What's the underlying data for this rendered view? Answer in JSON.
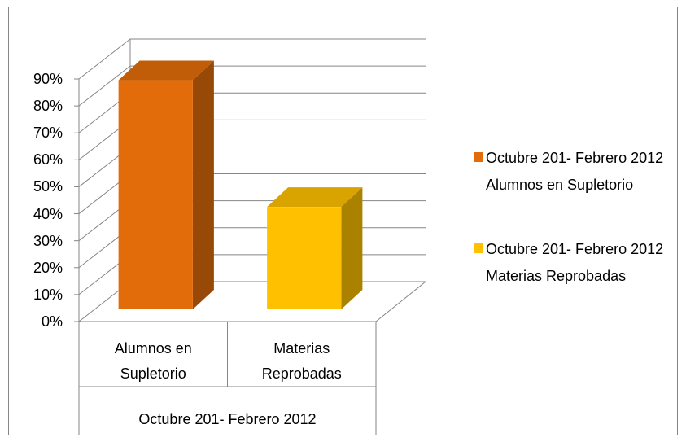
{
  "chart_data": {
    "type": "bar3d",
    "categories": [
      "Alumnos en Supletorio",
      "Materias Reprobadas"
    ],
    "category_group": "Octubre 201- Febrero 2012",
    "series": [
      {
        "name": "Octubre 201- Febrero 2012  Alumnos en Supletorio",
        "color": "#E36C0A",
        "values": [
          85,
          null
        ]
      },
      {
        "name": "Octubre 201- Febrero 2012  Materias Reprobadas",
        "color": "#FFC000",
        "values": [
          null,
          38
        ]
      }
    ],
    "ylim": [
      0,
      90
    ],
    "yticks": [
      {
        "value": 0,
        "label": "0%"
      },
      {
        "value": 10,
        "label": "10%"
      },
      {
        "value": 20,
        "label": "20%"
      },
      {
        "value": 30,
        "label": "30%"
      },
      {
        "value": 40,
        "label": "40%"
      },
      {
        "value": 50,
        "label": "50%"
      },
      {
        "value": 60,
        "label": "60%"
      },
      {
        "value": 70,
        "label": "70%"
      },
      {
        "value": 80,
        "label": "80%"
      },
      {
        "value": 90,
        "label": "90%"
      }
    ],
    "grid": true,
    "legend": "right"
  }
}
